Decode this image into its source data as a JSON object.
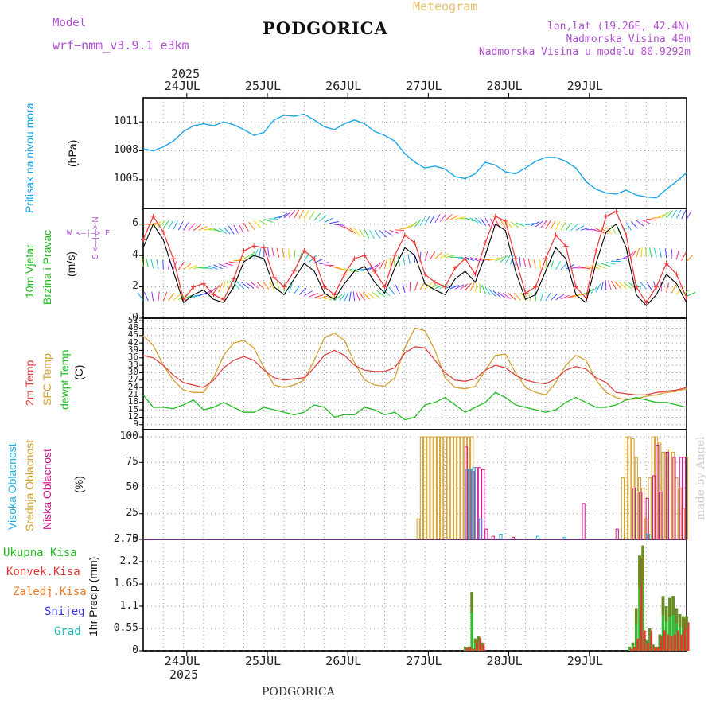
{
  "header": {
    "model_label": "Model",
    "model_name": "wrf−nmm_v3.9.1  e3km",
    "city": "PODGORICA",
    "meteogram_label": "Meteogram",
    "coords": "lon,lat (19.26E, 42.4N)",
    "elevation": "Nadmorska Visina 49m",
    "model_elevation": "Nadmorska Visina u modelu 80.9292m",
    "footer_city": "PODGORICA",
    "credit": "made by Angel"
  },
  "dates": {
    "year": "2025",
    "days": [
      "24JUL",
      "25JUL",
      "26JUL",
      "27JUL",
      "28JUL",
      "29JUL"
    ]
  },
  "colors": {
    "pressure": "#1aa6e8",
    "wind_label": "#22bb22",
    "wind_speed": "#000000",
    "gust": "#ee3333",
    "t2m": "#e04040",
    "sfc": "#d4a030",
    "dew": "#22bb22",
    "high_cloud": "#20b0e0",
    "mid_cloud": "#d4a030",
    "low_cloud": "#cc1488",
    "total_precip": "#33bb33",
    "conv_precip": "#ee3333",
    "freezing": "#ee7722",
    "snow": "#3333dd",
    "hail": "#22bbbb",
    "violet": "#b050d0"
  },
  "panels": {
    "pressure": {
      "ylabel_a": "Pritisak na nivou mora",
      "ylabel_b": "(hPa)",
      "ticks": [
        "1011",
        "1008",
        "1005"
      ]
    },
    "wind": {
      "ylabel_a": "10m Vjetar",
      "ylabel_b": "Brzina i Pravac",
      "ylabel_c": "(m/s)",
      "ticks": [
        "6",
        "4",
        "2",
        "0"
      ],
      "compass": "W <—|—> E",
      "compass_ns": "S <—|—> N"
    },
    "temp": {
      "ylabel_a": "2m Temp",
      "ylabel_b": "SFC Temp",
      "ylabel_c": "dewpt Temp",
      "ylabel_d": "(C)",
      "ticks": [
        "51",
        "48",
        "45",
        "42",
        "39",
        "36",
        "33",
        "30",
        "27",
        "24",
        "21",
        "18",
        "15",
        "12",
        "9"
      ]
    },
    "cloud": {
      "ylabel_a": "Visoka Oblacnost",
      "ylabel_b": "Srednja Oblacnost",
      "ylabel_c": "Niska Oblacnost",
      "ylabel_d": "(%)",
      "ticks": [
        "100",
        "75",
        "50",
        "25",
        "0"
      ]
    },
    "precip": {
      "ylabel": "1hr Precip (mm)",
      "ticks": [
        "2.75",
        "2.2",
        "1.65",
        "1.1",
        "0.55",
        "0"
      ],
      "legend": [
        "Ukupna Kisa",
        "Konvek.Kisa",
        "Zaledj.Kisa",
        "Snijeg",
        "Grad"
      ]
    }
  },
  "chart_data": [
    {
      "type": "line",
      "name": "pressure",
      "ylabel": "(hPa)",
      "ylim": [
        1002,
        1013.5
      ],
      "x_unit": "hours from 00 UTC 23 JUL",
      "x": [
        0,
        3,
        6,
        9,
        12,
        15,
        18,
        21,
        24,
        27,
        30,
        33,
        36,
        39,
        42,
        45,
        48,
        51,
        54,
        57,
        60,
        63,
        66,
        69,
        72,
        75,
        78,
        81,
        84,
        87,
        90,
        93,
        96,
        99,
        102,
        105,
        108,
        111,
        114,
        117,
        120,
        123,
        126,
        129,
        132,
        135,
        138,
        141,
        144,
        147,
        150,
        153,
        156,
        159,
        162
      ],
      "series": [
        {
          "name": "MSLP",
          "values": [
            1008.2,
            1008.0,
            1008.4,
            1009.0,
            1010.0,
            1010.6,
            1010.8,
            1010.6,
            1011.0,
            1010.7,
            1010.2,
            1009.6,
            1009.9,
            1011.2,
            1011.7,
            1011.6,
            1011.8,
            1011.2,
            1010.5,
            1010.2,
            1010.8,
            1011.2,
            1010.8,
            1010.0,
            1009.6,
            1009.0,
            1007.7,
            1006.8,
            1006.2,
            1006.4,
            1006.1,
            1005.3,
            1005.1,
            1005.6,
            1006.8,
            1006.5,
            1005.8,
            1005.6,
            1006.2,
            1006.9,
            1007.3,
            1007.3,
            1006.9,
            1006.2,
            1004.8,
            1004.0,
            1003.6,
            1003.5,
            1003.9,
            1003.4,
            1003.2,
            1003.1,
            1004.0,
            1004.8,
            1005.7
          ]
        }
      ]
    },
    {
      "type": "line",
      "name": "wind",
      "ylabel": "(m/s)",
      "ylim": [
        0,
        7
      ],
      "x_unit": "hours from 00 UTC 23 JUL",
      "x": [
        0,
        3,
        6,
        9,
        12,
        15,
        18,
        21,
        24,
        27,
        30,
        33,
        36,
        39,
        42,
        45,
        48,
        51,
        54,
        57,
        60,
        63,
        66,
        69,
        72,
        75,
        78,
        81,
        84,
        87,
        90,
        93,
        96,
        99,
        102,
        105,
        108,
        111,
        114,
        117,
        120,
        123,
        126,
        129,
        132,
        135,
        138,
        141,
        144,
        147,
        150,
        153,
        156,
        159,
        162
      ],
      "series": [
        {
          "name": "speed",
          "values": [
            4.5,
            6.0,
            5.0,
            3.0,
            1.0,
            1.5,
            1.8,
            1.2,
            1.0,
            2.0,
            3.6,
            4.0,
            3.8,
            2.0,
            1.5,
            2.5,
            3.5,
            3.0,
            1.6,
            1.2,
            2.2,
            3.0,
            3.3,
            2.3,
            1.6,
            3.2,
            4.5,
            4.0,
            2.2,
            1.8,
            1.5,
            2.5,
            3.0,
            2.3,
            4.0,
            6.0,
            5.6,
            3.0,
            1.2,
            1.5,
            3.0,
            4.5,
            3.8,
            1.5,
            1.0,
            3.5,
            5.5,
            6.0,
            4.5,
            1.5,
            0.8,
            1.5,
            2.8,
            2.2,
            1.0
          ]
        },
        {
          "name": "gust",
          "values": [
            5.0,
            6.5,
            5.5,
            3.8,
            1.2,
            2.0,
            2.2,
            1.5,
            1.2,
            2.5,
            4.3,
            4.6,
            4.5,
            2.6,
            2.0,
            3.0,
            4.3,
            3.8,
            2.0,
            1.5,
            2.8,
            3.8,
            4.0,
            3.0,
            2.0,
            4.0,
            5.3,
            4.8,
            2.8,
            2.3,
            2.0,
            3.2,
            3.8,
            2.8,
            4.8,
            6.5,
            6.2,
            3.8,
            1.6,
            2.0,
            3.8,
            5.3,
            4.6,
            2.0,
            1.3,
            4.3,
            6.5,
            6.8,
            5.3,
            2.0,
            1.0,
            2.0,
            3.5,
            2.8,
            1.3
          ]
        }
      ]
    },
    {
      "type": "line",
      "name": "temperature",
      "ylabel": "(C)",
      "ylim": [
        7,
        52
      ],
      "x_unit": "hours from 00 UTC 23 JUL",
      "x": [
        0,
        3,
        6,
        9,
        12,
        15,
        18,
        21,
        24,
        27,
        30,
        33,
        36,
        39,
        42,
        45,
        48,
        51,
        54,
        57,
        60,
        63,
        66,
        69,
        72,
        75,
        78,
        81,
        84,
        87,
        90,
        93,
        96,
        99,
        102,
        105,
        108,
        111,
        114,
        117,
        120,
        123,
        126,
        129,
        132,
        135,
        138,
        141,
        144,
        147,
        150,
        153,
        156,
        159,
        162
      ],
      "series": [
        {
          "name": "2m Temp",
          "values": [
            37,
            36,
            33,
            29,
            26,
            25,
            24,
            27,
            32,
            35,
            36.5,
            35,
            31,
            28,
            27,
            27.5,
            28,
            32,
            37,
            39,
            37,
            33,
            31,
            30.5,
            30.5,
            32,
            38,
            40.5,
            40,
            35,
            30,
            27,
            26.5,
            27.5,
            31,
            33,
            32,
            29,
            27,
            26,
            25.5,
            27.5,
            31,
            32.5,
            31.5,
            28,
            26,
            22,
            21.5,
            21,
            21,
            22,
            22.5,
            23,
            24
          ]
        },
        {
          "name": "SFC Temp",
          "values": [
            45,
            41,
            33,
            27,
            23,
            22,
            22,
            28,
            37,
            42,
            43,
            40,
            32,
            25,
            24,
            25,
            27,
            35,
            44,
            46,
            43,
            34,
            27,
            25,
            24.5,
            28,
            40,
            48,
            47,
            39,
            28,
            24,
            23.5,
            24.5,
            31,
            37,
            37.5,
            30,
            24,
            22,
            21,
            26,
            33,
            37,
            35,
            27,
            22,
            20,
            19,
            19.5,
            20.5,
            21,
            22,
            22.5,
            23.5
          ]
        },
        {
          "name": "dewpt Temp",
          "values": [
            21,
            16,
            16,
            15.5,
            17,
            19,
            15,
            16,
            18,
            16,
            14,
            14,
            16,
            15,
            14,
            13,
            14,
            17,
            16,
            12,
            13,
            13,
            16,
            15,
            13,
            14,
            11,
            12,
            17,
            18,
            20,
            17,
            14,
            16,
            18,
            22,
            20,
            17,
            16,
            15,
            14,
            15,
            18,
            20,
            18,
            16,
            16,
            17,
            19,
            20,
            19,
            18,
            18,
            17,
            16
          ]
        }
      ]
    },
    {
      "type": "bar",
      "name": "cloud",
      "ylabel": "(%)",
      "ylim": [
        0,
        100
      ],
      "x_unit": "hours from 00 UTC 23 JUL",
      "series": [
        {
          "name": "Srednja Oblacnost",
          "x": [
            82,
            83,
            84,
            85,
            86,
            87,
            88,
            89,
            90,
            91,
            92,
            93,
            94,
            95,
            96,
            97,
            98,
            143,
            144,
            145,
            146,
            147,
            148,
            149,
            150,
            151,
            152,
            153,
            154,
            155,
            156,
            157,
            158,
            159,
            160,
            161,
            162
          ],
          "values": [
            20,
            100,
            100,
            100,
            100,
            100,
            100,
            100,
            100,
            100,
            100,
            100,
            100,
            100,
            100,
            100,
            100,
            60,
            100,
            100,
            98,
            80,
            60,
            50,
            20,
            60,
            100,
            100,
            95,
            85,
            85,
            88,
            85,
            60,
            50,
            30,
            80
          ]
        },
        {
          "name": "Niska Oblacnost",
          "x": [
            96,
            97,
            98,
            99,
            100,
            101,
            102,
            104,
            110,
            131,
            141,
            146,
            148,
            150,
            152,
            153,
            154,
            156,
            158,
            160,
            161
          ],
          "values": [
            90,
            68,
            66,
            70,
            70,
            68,
            10,
            3,
            2,
            35,
            10,
            50,
            46,
            40,
            62,
            92,
            46,
            85,
            80,
            80,
            80
          ]
        },
        {
          "name": "Visoka Oblacnost",
          "x": [
            96,
            97,
            98,
            100,
            106,
            117,
            125,
            150
          ],
          "values": [
            68,
            68,
            70,
            20,
            5,
            3,
            2,
            5
          ]
        }
      ]
    },
    {
      "type": "bar",
      "name": "precipitation",
      "ylabel": "1hr Precip (mm)",
      "ylim": [
        0,
        2.75
      ],
      "x_unit": "hours from 00 UTC 23 JUL",
      "series": [
        {
          "name": "Ukupna Kisa",
          "x": [
            96,
            97,
            98,
            99,
            100,
            101,
            145,
            146,
            147,
            148,
            149,
            150,
            151,
            152,
            153,
            154,
            155,
            156,
            157,
            158,
            159,
            160,
            161,
            162
          ],
          "values": [
            0.1,
            0.1,
            1.45,
            0.3,
            0.35,
            0.2,
            0.1,
            0.2,
            1.05,
            2.35,
            2.6,
            0.25,
            0.55,
            0.15,
            0.1,
            0.4,
            1.35,
            1.1,
            1.3,
            1.35,
            1.05,
            0.9,
            0.85,
            0.85
          ]
        },
        {
          "name": "Konvek.Kisa",
          "x": [
            96,
            97,
            98,
            99,
            100,
            101,
            145,
            146,
            147,
            148,
            149,
            150,
            151,
            152,
            153,
            154,
            155,
            156,
            157,
            158,
            159,
            160,
            161,
            162
          ],
          "values": [
            0.08,
            0.1,
            0.05,
            0.28,
            0.32,
            0.18,
            0.05,
            0.1,
            0.3,
            2.3,
            0.5,
            0.2,
            0.5,
            0.1,
            0.1,
            0.35,
            0.5,
            0.4,
            0.35,
            0.4,
            0.5,
            0.4,
            0.8,
            0.7
          ]
        }
      ]
    }
  ]
}
